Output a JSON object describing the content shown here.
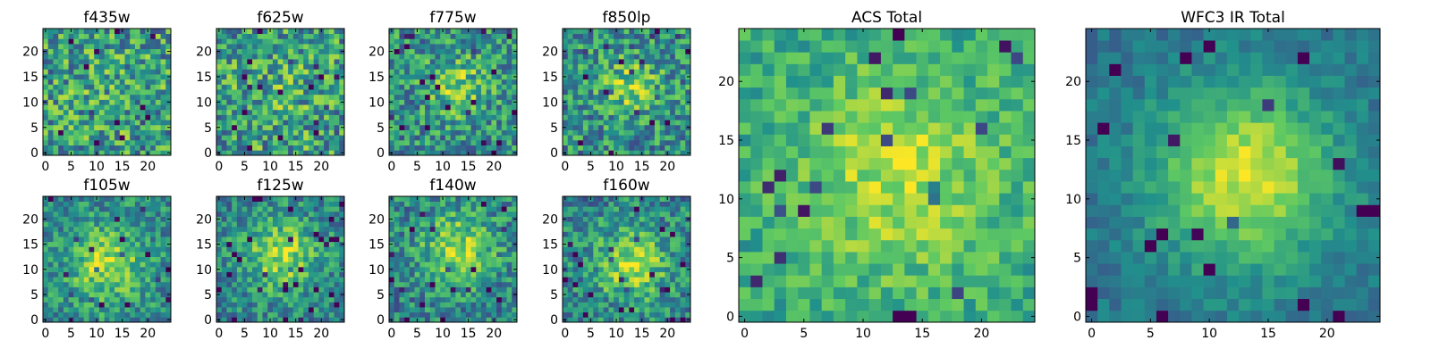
{
  "chart_data": [
    {
      "type": "heatmap",
      "title": "f435w",
      "xlabel": "",
      "ylabel": "",
      "xlim": [
        -0.5,
        24.5
      ],
      "ylim": [
        -0.5,
        24.5
      ],
      "xticks": [
        "0",
        "5",
        "10",
        "15",
        "20"
      ],
      "yticks": [
        "0",
        "5",
        "10",
        "15",
        "20"
      ],
      "colormap": "viridis",
      "grid_size": 25,
      "noise": 0.32,
      "peak": 0.05,
      "center": [
        12,
        12
      ],
      "sigma": 7,
      "base": 0.55,
      "seed": 11
    },
    {
      "type": "heatmap",
      "title": "f625w",
      "xlabel": "",
      "ylabel": "",
      "xlim": [
        -0.5,
        24.5
      ],
      "ylim": [
        -0.5,
        24.5
      ],
      "xticks": [
        "0",
        "5",
        "10",
        "15",
        "20"
      ],
      "yticks": [
        "0",
        "5",
        "10",
        "15",
        "20"
      ],
      "colormap": "viridis",
      "grid_size": 25,
      "noise": 0.32,
      "peak": 0.08,
      "center": [
        12,
        12
      ],
      "sigma": 6,
      "base": 0.55,
      "seed": 23
    },
    {
      "type": "heatmap",
      "title": "f775w",
      "xlabel": "",
      "ylabel": "",
      "xlim": [
        -0.5,
        24.5
      ],
      "ylim": [
        -0.5,
        24.5
      ],
      "xticks": [
        "0",
        "5",
        "10",
        "15",
        "20"
      ],
      "yticks": [
        "0",
        "5",
        "10",
        "15",
        "20"
      ],
      "colormap": "viridis",
      "grid_size": 25,
      "noise": 0.28,
      "peak": 0.3,
      "center": [
        13,
        13
      ],
      "sigma": 4,
      "base": 0.5,
      "seed": 37
    },
    {
      "type": "heatmap",
      "title": "f850lp",
      "xlabel": "",
      "ylabel": "",
      "xlim": [
        -0.5,
        24.5
      ],
      "ylim": [
        -0.5,
        24.5
      ],
      "xticks": [
        "0",
        "5",
        "10",
        "15",
        "20"
      ],
      "yticks": [
        "0",
        "5",
        "10",
        "15",
        "20"
      ],
      "colormap": "viridis",
      "grid_size": 25,
      "noise": 0.28,
      "peak": 0.28,
      "center": [
        13,
        13
      ],
      "sigma": 4,
      "base": 0.5,
      "seed": 41
    },
    {
      "type": "heatmap",
      "title": "f105w",
      "xlabel": "",
      "ylabel": "",
      "xlim": [
        -0.5,
        24.5
      ],
      "ylim": [
        -0.5,
        24.5
      ],
      "xticks": [
        "0",
        "5",
        "10",
        "15",
        "20"
      ],
      "yticks": [
        "0",
        "5",
        "10",
        "15",
        "20"
      ],
      "colormap": "viridis",
      "grid_size": 25,
      "noise": 0.22,
      "peak": 0.38,
      "center": [
        12,
        11
      ],
      "sigma": 5,
      "base": 0.48,
      "seed": 53
    },
    {
      "type": "heatmap",
      "title": "f125w",
      "xlabel": "",
      "ylabel": "",
      "xlim": [
        -0.5,
        24.5
      ],
      "ylim": [
        -0.5,
        24.5
      ],
      "xticks": [
        "0",
        "5",
        "10",
        "15",
        "20"
      ],
      "yticks": [
        "0",
        "5",
        "10",
        "15",
        "20"
      ],
      "colormap": "viridis",
      "grid_size": 25,
      "noise": 0.22,
      "peak": 0.4,
      "center": [
        12,
        13
      ],
      "sigma": 5,
      "base": 0.45,
      "seed": 67
    },
    {
      "type": "heatmap",
      "title": "f140w",
      "xlabel": "",
      "ylabel": "",
      "xlim": [
        -0.5,
        24.5
      ],
      "ylim": [
        -0.5,
        24.5
      ],
      "xticks": [
        "0",
        "5",
        "10",
        "15",
        "20"
      ],
      "yticks": [
        "0",
        "5",
        "10",
        "15",
        "20"
      ],
      "colormap": "viridis",
      "grid_size": 25,
      "noise": 0.24,
      "peak": 0.4,
      "center": [
        13,
        14
      ],
      "sigma": 5,
      "base": 0.45,
      "seed": 79
    },
    {
      "type": "heatmap",
      "title": "f160w",
      "xlabel": "",
      "ylabel": "",
      "xlim": [
        -0.5,
        24.5
      ],
      "ylim": [
        -0.5,
        24.5
      ],
      "xticks": [
        "0",
        "5",
        "10",
        "15",
        "20"
      ],
      "yticks": [
        "0",
        "5",
        "10",
        "15",
        "20"
      ],
      "colormap": "viridis",
      "grid_size": 25,
      "noise": 0.24,
      "peak": 0.4,
      "center": [
        13,
        11
      ],
      "sigma": 5,
      "base": 0.45,
      "seed": 83
    },
    {
      "type": "heatmap",
      "title": "ACS Total",
      "xlabel": "",
      "ylabel": "",
      "xlim": [
        -0.5,
        24.5
      ],
      "ylim": [
        -0.5,
        24.5
      ],
      "xticks": [
        "0",
        "5",
        "10",
        "15",
        "20"
      ],
      "yticks": [
        "0",
        "5",
        "10",
        "15",
        "20"
      ],
      "colormap": "viridis",
      "grid_size": 25,
      "noise": 0.16,
      "peak": 0.28,
      "center": [
        13,
        12
      ],
      "sigma": 6,
      "base": 0.6,
      "seed": 97
    },
    {
      "type": "heatmap",
      "title": "WFC3 IR Total",
      "xlabel": "",
      "ylabel": "",
      "xlim": [
        -0.5,
        24.5
      ],
      "ylim": [
        -0.5,
        24.5
      ],
      "xticks": [
        "0",
        "5",
        "10",
        "15",
        "20"
      ],
      "yticks": [
        "0",
        "5",
        "10",
        "15",
        "20"
      ],
      "colormap": "viridis",
      "grid_size": 25,
      "noise": 0.1,
      "peak": 0.55,
      "center": [
        13,
        12
      ],
      "sigma": 5.5,
      "base": 0.38,
      "seed": 101
    }
  ]
}
